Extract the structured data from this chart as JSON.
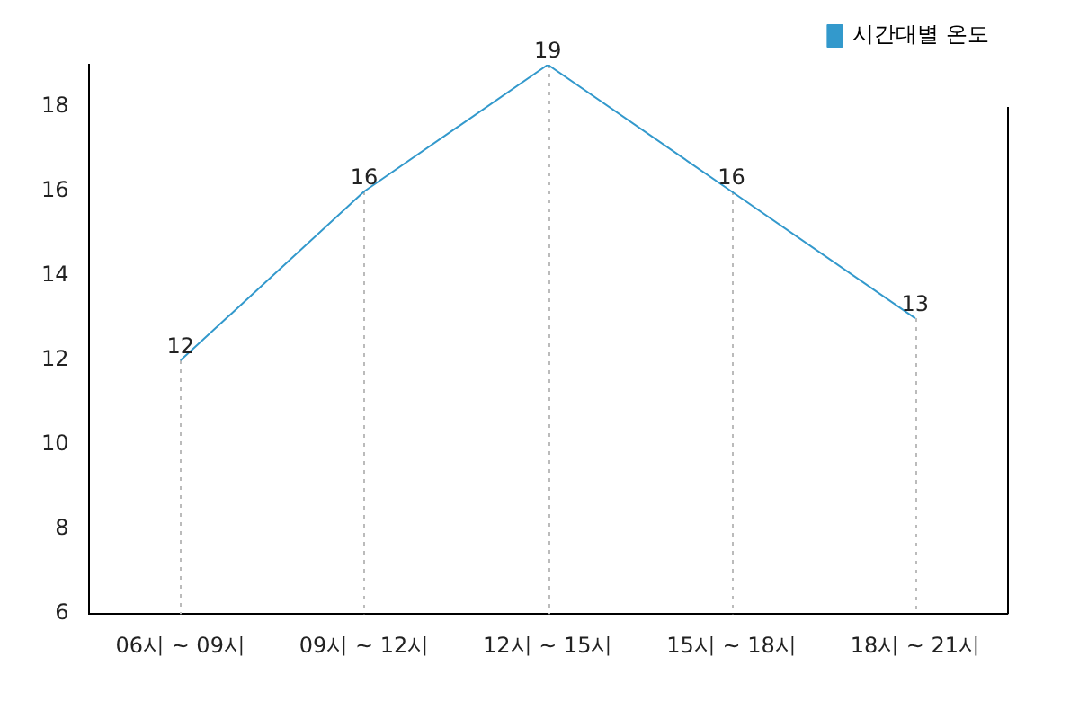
{
  "chart_data": {
    "type": "line",
    "categories": [
      "06시 ~ 09시",
      "09시 ~ 12시",
      "12시 ~ 15시",
      "15시 ~ 18시",
      "18시 ~ 21시"
    ],
    "series": [
      {
        "name": "시간대별 온도",
        "color": "#3399cc",
        "values": [
          12,
          16,
          19,
          16,
          13
        ]
      }
    ],
    "ylim": [
      6,
      19
    ],
    "yticks": [
      6,
      8,
      10,
      12,
      14,
      16,
      18
    ],
    "grid": "x",
    "legend": "top right",
    "marker": "none",
    "line_style": "solid",
    "data_labels": true
  }
}
